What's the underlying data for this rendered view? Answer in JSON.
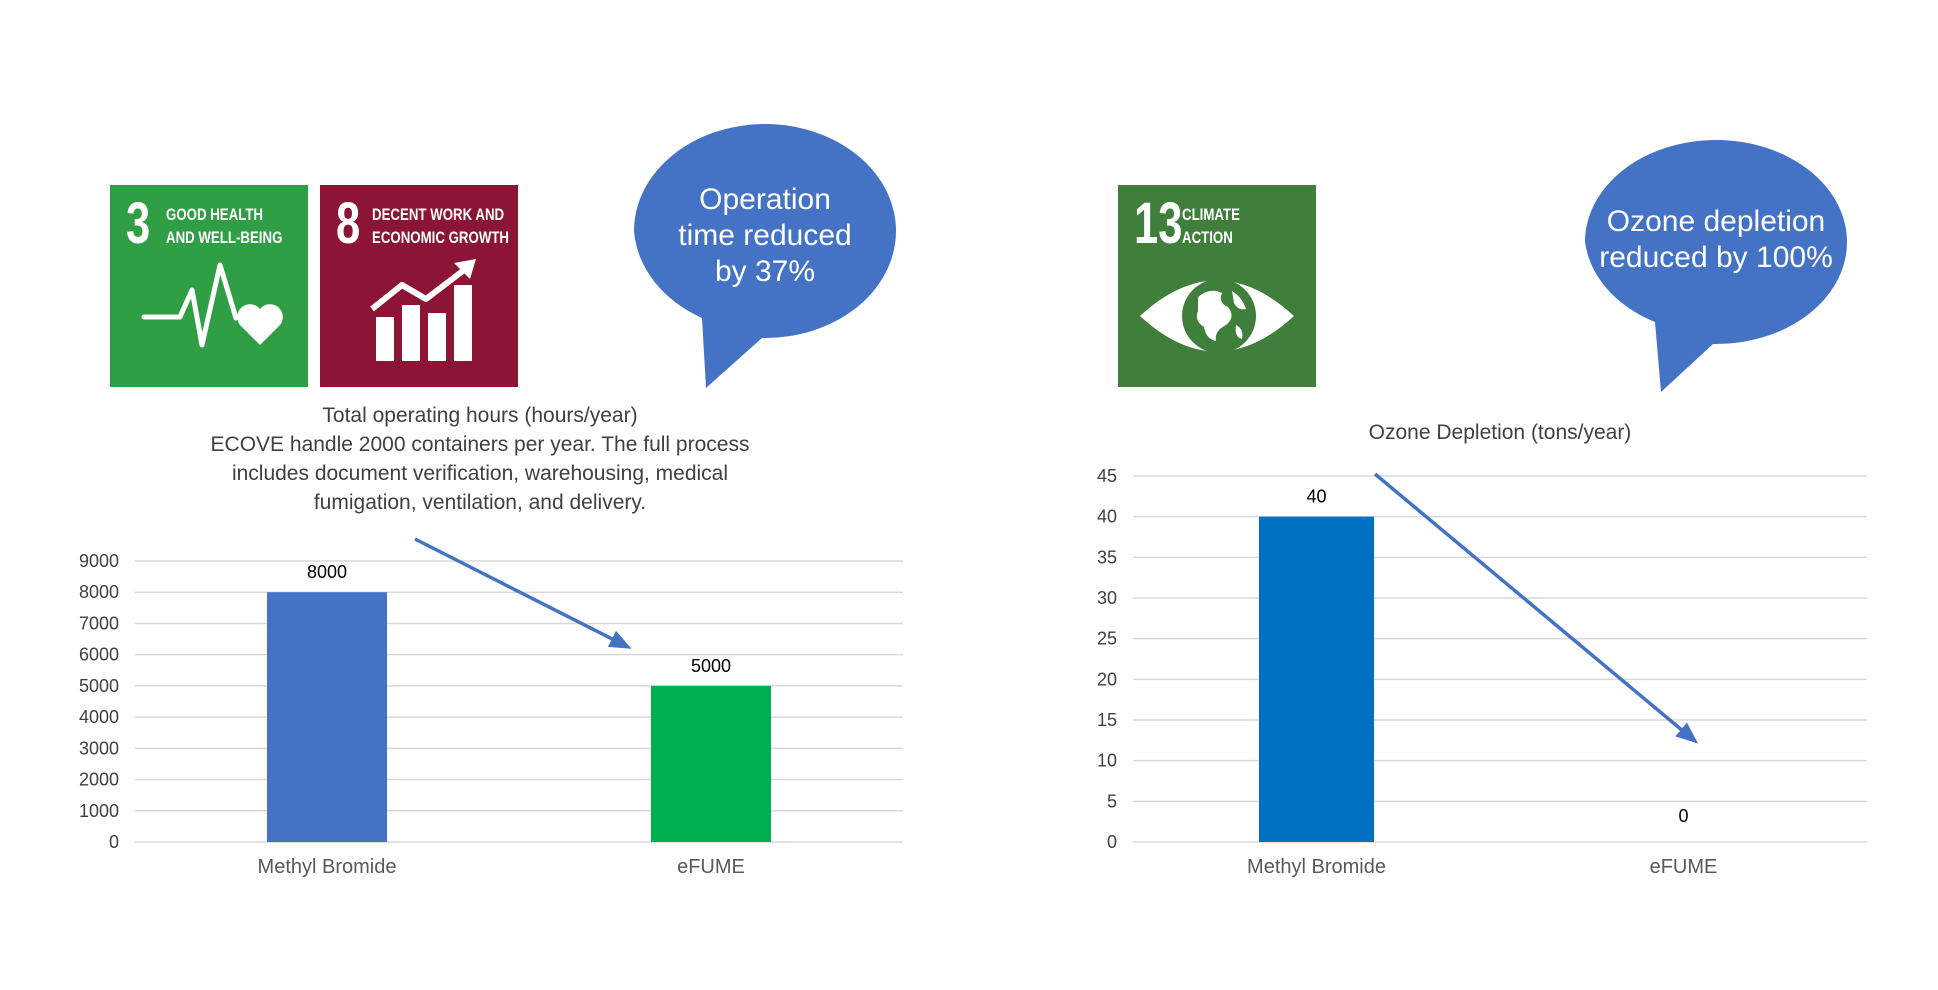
{
  "colors": {
    "sdg3": "#2f9e44",
    "sdg8": "#8c1434",
    "sdg13": "#3f7e3b",
    "bubble": "#4472c4",
    "arrow": "#4472c4",
    "bar_methyl_left": "#4472c4",
    "bar_efume_left": "#00b050",
    "bar_methyl_right": "#0070c0",
    "grid": "#d9d9d9"
  },
  "badges": [
    {
      "number": "3",
      "label": "GOOD HEALTH\nAND WELL-BEING",
      "icon": "heartbeat-icon"
    },
    {
      "number": "8",
      "label": "DECENT WORK AND\nECONOMIC GROWTH",
      "icon": "growth-chart-icon"
    },
    {
      "number": "13",
      "label": "CLIMATE\nACTION",
      "icon": "earth-eye-icon"
    }
  ],
  "bubbles": [
    {
      "text": "Operation\ntime reduced\nby 37%"
    },
    {
      "text": "Ozone depletion\nreduced by 100%"
    }
  ],
  "chart_data": [
    {
      "type": "bar",
      "title": "Total operating hours (hours/year)\nECOVE handle 2000 containers per year. The full process\nincludes document verification, warehousing, medical\nfumigation, ventilation, and delivery.",
      "categories": [
        "Methyl Bromide",
        "eFUME"
      ],
      "values": [
        8000,
        5000
      ],
      "data_labels": [
        "8000",
        "5000"
      ],
      "ylim": [
        0,
        9000
      ],
      "yticks": [
        0,
        1000,
        2000,
        3000,
        4000,
        5000,
        6000,
        7000,
        8000,
        9000
      ],
      "grid": true,
      "annotation": "arrow from Methyl Bromide toward eFUME"
    },
    {
      "type": "bar",
      "title": "Ozone Depletion (tons/year)",
      "categories": [
        "Methyl Bromide",
        "eFUME"
      ],
      "values": [
        40,
        0
      ],
      "data_labels": [
        "40",
        "0"
      ],
      "ylim": [
        0,
        45
      ],
      "yticks": [
        0,
        5,
        10,
        15,
        20,
        25,
        30,
        35,
        40,
        45
      ],
      "grid": true,
      "annotation": "arrow from Methyl Bromide toward eFUME"
    }
  ]
}
